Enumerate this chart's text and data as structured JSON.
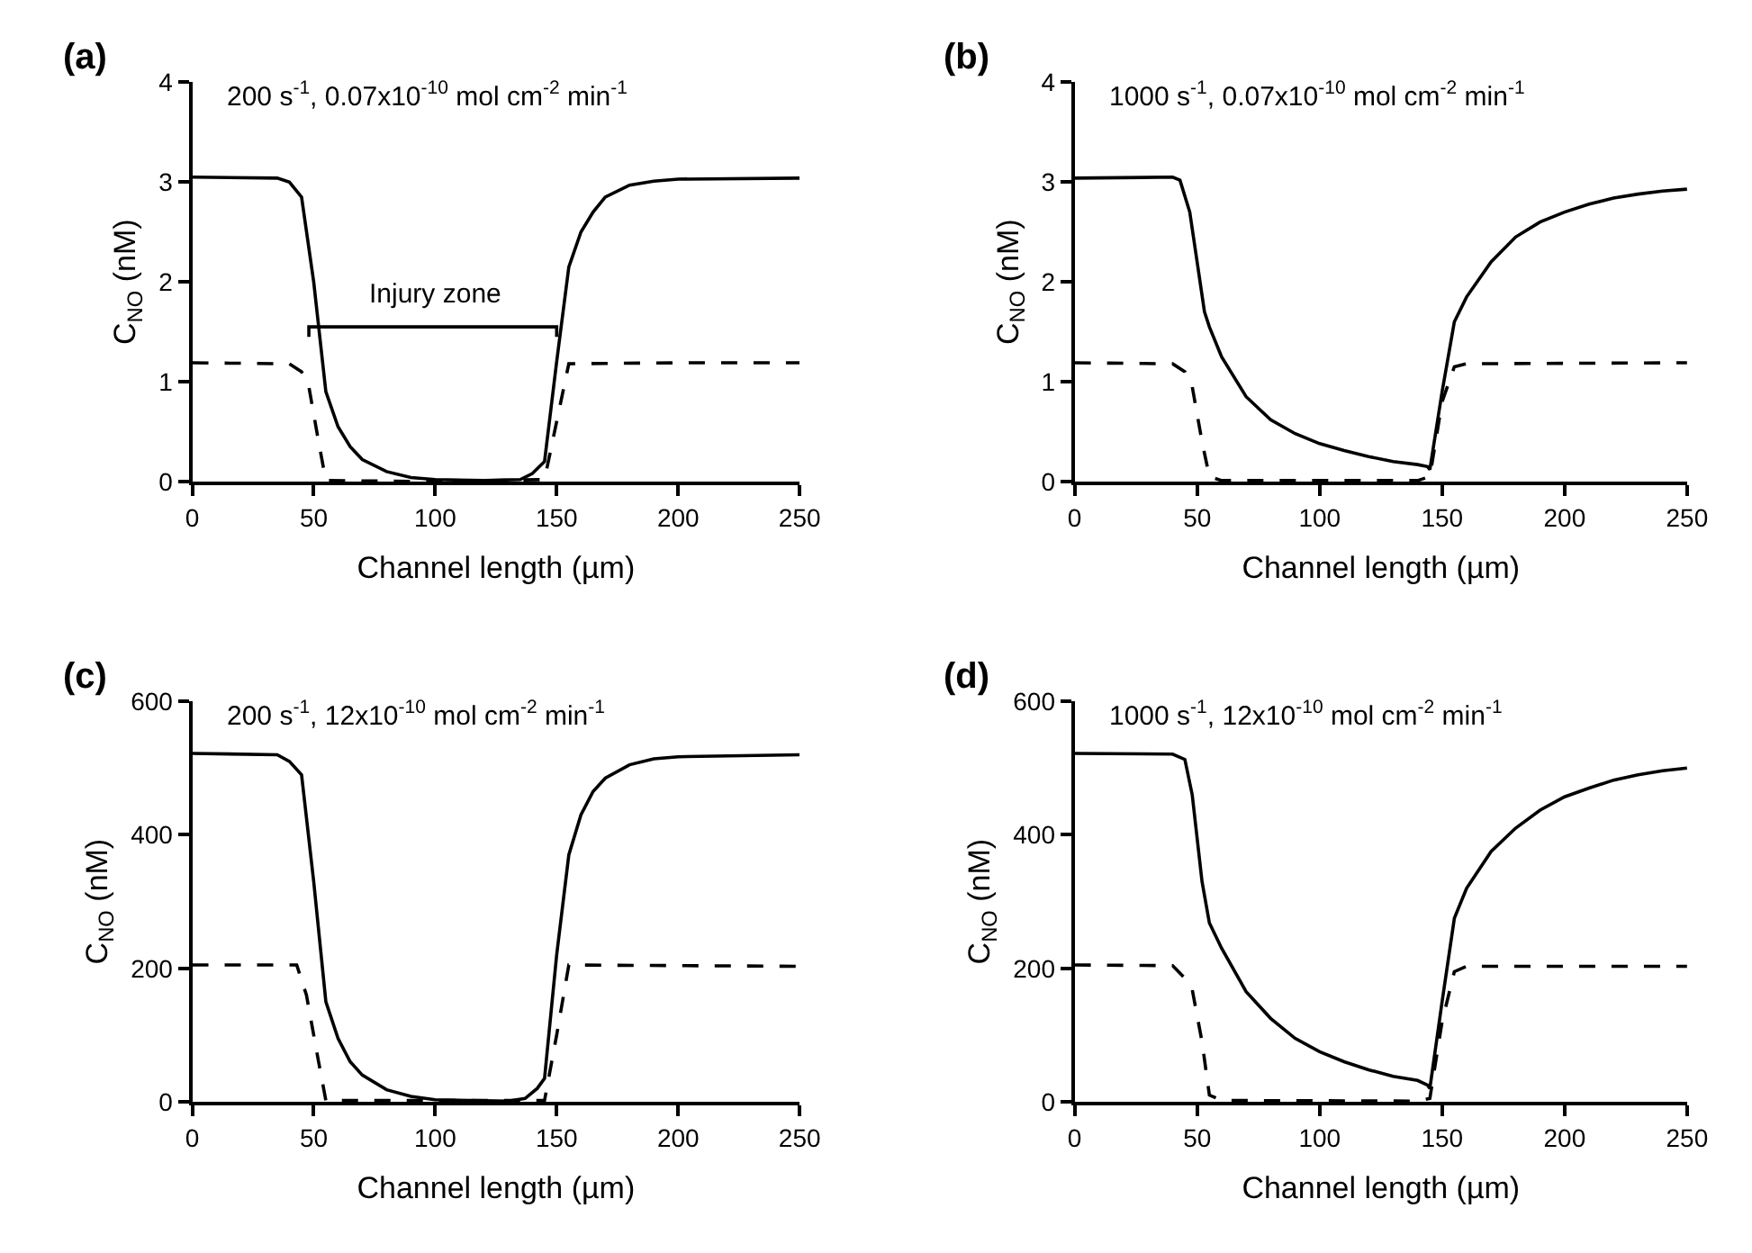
{
  "chart_data": [
    {
      "type": "line",
      "title": "(a)",
      "subtitle": "200 s$^{-1}$, 0.07x10$^{-10}$ mol cm$^{-2}$ min$^{-1}$",
      "xlabel": "Channel length (µm)",
      "ylabel": "C$_{NO}$ (nM)",
      "xlim": [
        0,
        250
      ],
      "xticks": [
        0,
        50,
        100,
        150,
        200,
        250
      ],
      "ylim": [
        0,
        4
      ],
      "yticks": [
        0,
        1,
        2,
        3,
        4
      ],
      "marker": "none",
      "annotations": [
        {
          "text": "Injury zone",
          "x": 100,
          "y": 1.55
        }
      ],
      "series": [
        {
          "color": "#000000",
          "line_style": "solid",
          "x": [
            48,
            48,
            150,
            150
          ],
          "values": [
            1.45,
            1.55,
            1.55,
            1.45
          ]
        },
        {
          "color": "#000000",
          "line_style": "solid",
          "x": [
            0,
            35,
            40,
            45,
            50,
            55,
            60,
            65,
            70,
            80,
            90,
            100,
            120,
            135,
            140,
            145,
            150,
            155,
            160,
            165,
            170,
            180,
            190,
            200,
            250
          ],
          "values": [
            3.05,
            3.04,
            3.0,
            2.85,
            2.0,
            0.9,
            0.55,
            0.35,
            0.22,
            0.1,
            0.04,
            0.02,
            0.01,
            0.02,
            0.08,
            0.2,
            1.2,
            2.15,
            2.5,
            2.7,
            2.85,
            2.97,
            3.01,
            3.03,
            3.04
          ]
        },
        {
          "color": "#000000",
          "line_style": "dashed",
          "x": [
            0,
            40,
            45,
            48,
            52,
            55,
            100,
            145,
            150,
            155,
            200,
            250
          ],
          "values": [
            1.19,
            1.18,
            1.1,
            0.95,
            0.4,
            0.01,
            0.0,
            0.02,
            0.6,
            1.18,
            1.19,
            1.19
          ]
        }
      ]
    },
    {
      "type": "line",
      "title": "(b)",
      "subtitle": "1000 s$^{-1}$, 0.07x10$^{-10}$ mol cm$^{-2}$ min$^{-1}$",
      "xlabel": "Channel length (µm)",
      "ylabel": "C$_{NO}$ (nM)",
      "xlim": [
        0,
        250
      ],
      "xticks": [
        0,
        50,
        100,
        150,
        200,
        250
      ],
      "ylim": [
        0,
        4
      ],
      "yticks": [
        0,
        1,
        2,
        3,
        4
      ],
      "marker": "none",
      "series": [
        {
          "color": "#000000",
          "line_style": "solid",
          "x": [
            0,
            40,
            43,
            47,
            50,
            53,
            55,
            60,
            70,
            80,
            90,
            100,
            110,
            120,
            130,
            140,
            144,
            145,
            150,
            155,
            160,
            170,
            180,
            190,
            200,
            210,
            220,
            230,
            240,
            250
          ],
          "values": [
            3.04,
            3.05,
            3.02,
            2.7,
            2.2,
            1.7,
            1.55,
            1.25,
            0.85,
            0.62,
            0.48,
            0.38,
            0.31,
            0.25,
            0.2,
            0.17,
            0.15,
            0.12,
            0.9,
            1.6,
            1.85,
            2.2,
            2.45,
            2.6,
            2.7,
            2.78,
            2.84,
            2.88,
            2.91,
            2.93
          ]
        },
        {
          "color": "#000000",
          "line_style": "dashed",
          "x": [
            0,
            40,
            45,
            48,
            52,
            55,
            60,
            140,
            145,
            150,
            155,
            160,
            250
          ],
          "values": [
            1.19,
            1.18,
            1.1,
            0.95,
            0.4,
            0.05,
            0.01,
            0.01,
            0.05,
            0.8,
            1.15,
            1.18,
            1.19
          ]
        }
      ]
    },
    {
      "type": "line",
      "title": "(c)",
      "subtitle": "200 s$^{-1}$, 12x10$^{-10}$ mol cm$^{-2}$ min$^{-1}$",
      "xlabel": "Channel length (µm)",
      "ylabel": "C$_{NO}$ (nM)",
      "xlim": [
        0,
        250
      ],
      "xticks": [
        0,
        50,
        100,
        150,
        200,
        250
      ],
      "ylim": [
        0,
        600
      ],
      "yticks": [
        0,
        200,
        400,
        600
      ],
      "marker": "none",
      "series": [
        {
          "color": "#000000",
          "line_style": "solid",
          "x": [
            0,
            35,
            40,
            45,
            50,
            55,
            60,
            65,
            70,
            80,
            90,
            100,
            130,
            137,
            142,
            145,
            150,
            155,
            160,
            165,
            170,
            180,
            190,
            200,
            250
          ],
          "values": [
            522,
            520,
            510,
            490,
            330,
            150,
            95,
            60,
            40,
            18,
            8,
            3,
            1,
            5,
            20,
            35,
            220,
            370,
            430,
            465,
            485,
            505,
            514,
            517,
            520
          ]
        },
        {
          "color": "#000000",
          "line_style": "dashed",
          "x": [
            0,
            43,
            47,
            52,
            55,
            145,
            150,
            155,
            250
          ],
          "values": [
            205,
            205,
            160,
            60,
            2,
            2,
            100,
            205,
            203
          ]
        }
      ]
    },
    {
      "type": "line",
      "title": "(d)",
      "subtitle": "1000 s$^{-1}$, 12x10$^{-10}$ mol cm$^{-2}$ min$^{-1}$",
      "xlabel": "Channel length (µm)",
      "ylabel": "C$_{NO}$ (nM)",
      "xlim": [
        0,
        250
      ],
      "xticks": [
        0,
        50,
        100,
        150,
        200,
        250
      ],
      "ylim": [
        0,
        600
      ],
      "yticks": [
        0,
        200,
        400,
        600
      ],
      "marker": "none",
      "series": [
        {
          "color": "#000000",
          "line_style": "solid",
          "x": [
            0,
            40,
            45,
            48,
            52,
            55,
            60,
            70,
            80,
            90,
            100,
            110,
            120,
            130,
            140,
            144,
            145,
            150,
            155,
            160,
            170,
            180,
            190,
            200,
            210,
            220,
            230,
            240,
            250
          ],
          "values": [
            522,
            521,
            513,
            460,
            330,
            268,
            230,
            165,
            125,
            95,
            75,
            60,
            48,
            38,
            32,
            25,
            20,
            150,
            275,
            320,
            375,
            410,
            437,
            457,
            470,
            482,
            490,
            496,
            500
          ]
        },
        {
          "color": "#000000",
          "line_style": "dashed",
          "x": [
            0,
            40,
            45,
            48,
            52,
            55,
            60,
            140,
            145,
            150,
            155,
            160,
            250
          ],
          "values": [
            205,
            204,
            185,
            168,
            90,
            10,
            2,
            1,
            5,
            120,
            195,
            203,
            203
          ]
        }
      ]
    }
  ]
}
